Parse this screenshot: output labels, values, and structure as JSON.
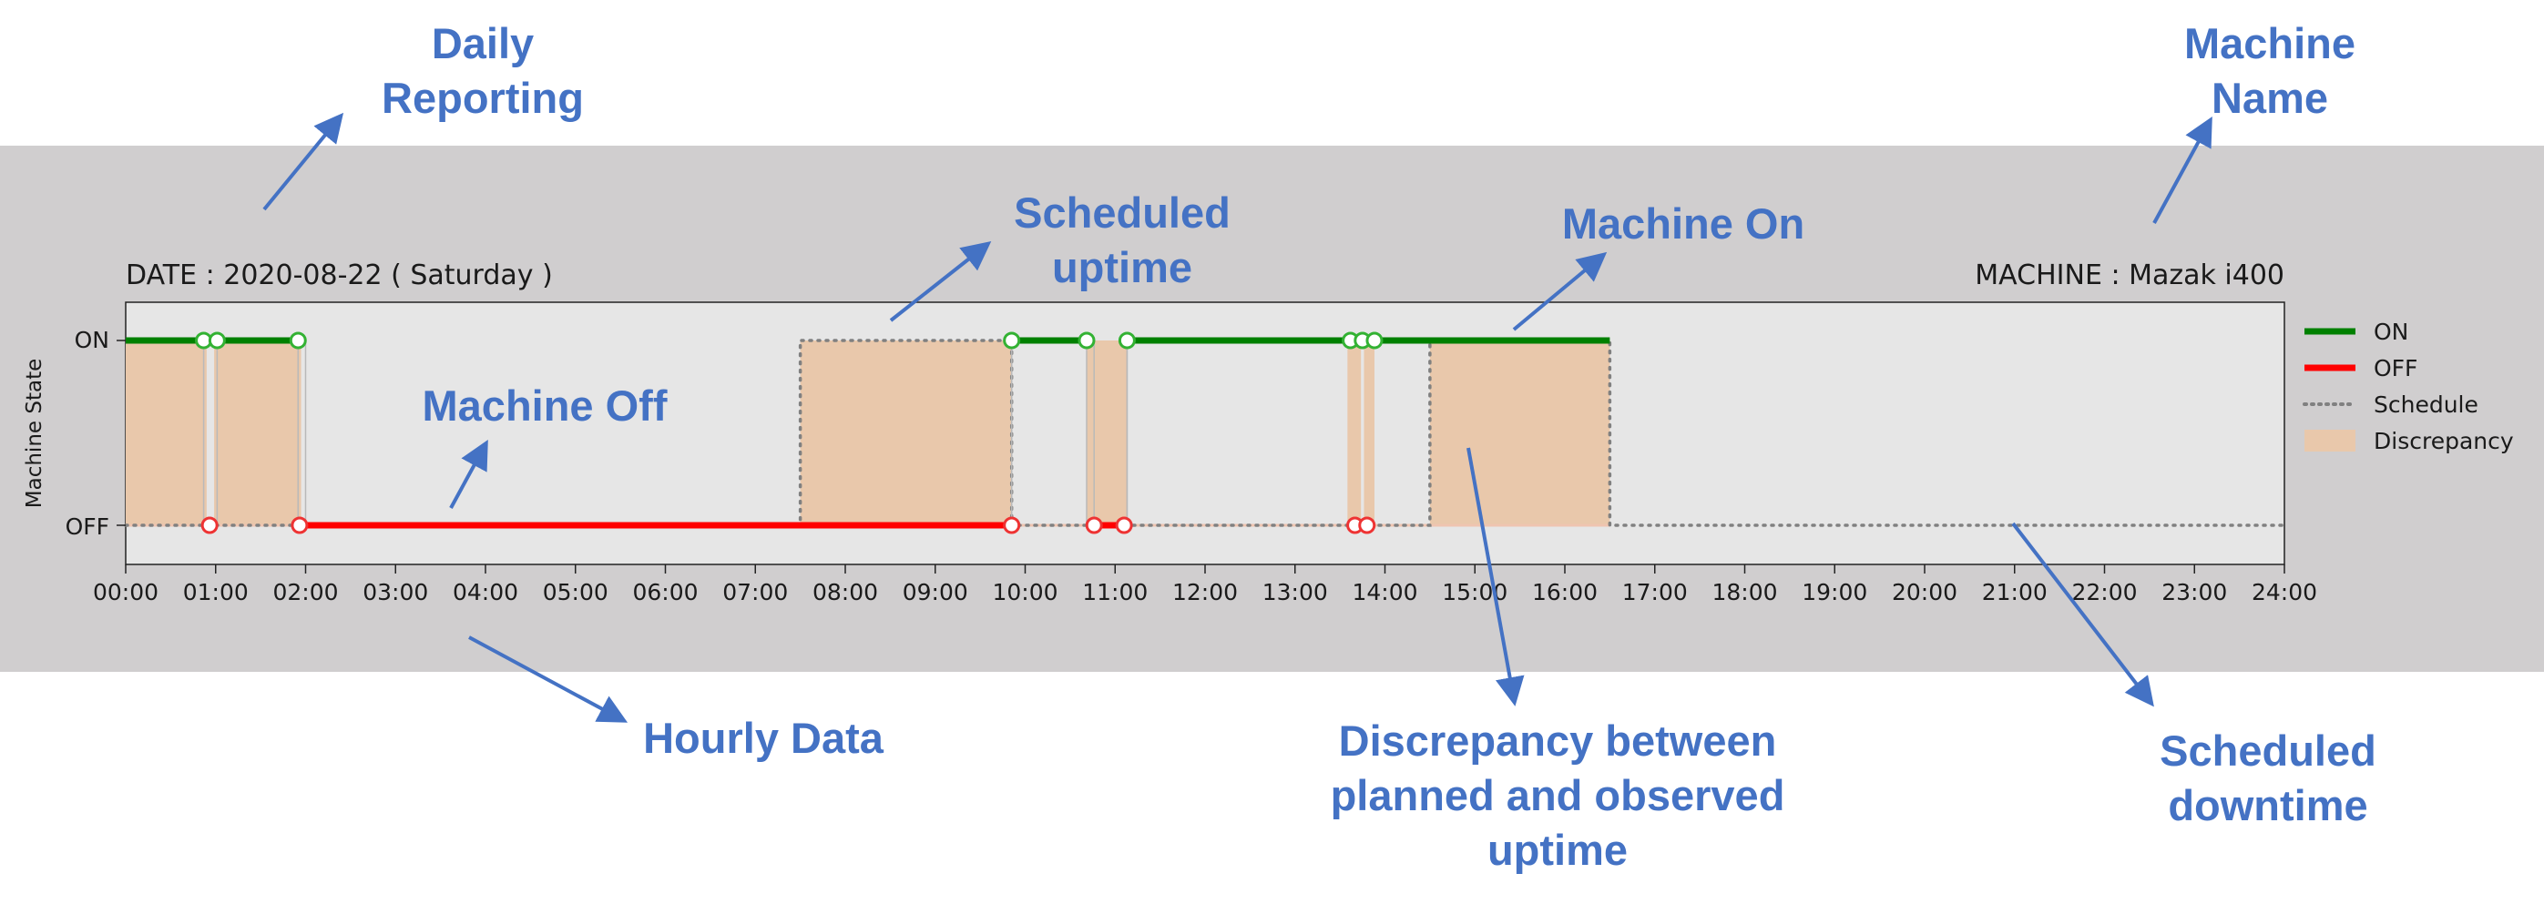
{
  "chart_data": {
    "type": "line",
    "date_label": "DATE : 2020-08-22 ( Saturday )",
    "machine_label": "MACHINE : Mazak i400",
    "ylabel": "Machine State",
    "y_categories": [
      "OFF",
      "ON"
    ],
    "xlim": [
      "00:00",
      "24:00"
    ],
    "x_ticks": [
      "00:00",
      "01:00",
      "02:00",
      "03:00",
      "04:00",
      "05:00",
      "06:00",
      "07:00",
      "08:00",
      "09:00",
      "10:00",
      "11:00",
      "12:00",
      "13:00",
      "14:00",
      "15:00",
      "16:00",
      "17:00",
      "18:00",
      "19:00",
      "20:00",
      "21:00",
      "22:00",
      "23:00",
      "24:00"
    ],
    "legend": {
      "placement": "right",
      "entries": [
        {
          "label": "ON",
          "color": "#008000",
          "style": "solid"
        },
        {
          "label": "OFF",
          "color": "#ff0000",
          "style": "solid"
        },
        {
          "label": "Schedule",
          "color": "#808080",
          "style": "dotted"
        },
        {
          "label": "Discrepancy",
          "color": "#e9c8ab",
          "style": "patch"
        }
      ]
    },
    "series": [
      {
        "name": "ON",
        "color": "#008000",
        "segments": [
          {
            "start": "00:00",
            "end": "00:52"
          },
          {
            "start": "01:01",
            "end": "01:55"
          },
          {
            "start": "09:51",
            "end": "10:41"
          },
          {
            "start": "11:08",
            "end": "16:30"
          }
        ]
      },
      {
        "name": "OFF",
        "color": "#ff0000",
        "segments": [
          {
            "start": "02:00",
            "end": "09:51"
          },
          {
            "start": "10:46",
            "end": "11:08"
          }
        ]
      },
      {
        "name": "Schedule",
        "color": "#808080",
        "steps": [
          {
            "time": "00:00",
            "state": "OFF"
          },
          {
            "time": "07:30",
            "state": "ON"
          },
          {
            "time": "09:51",
            "state": "OFF"
          },
          {
            "time": "14:30",
            "state": "ON"
          },
          {
            "time": "16:30",
            "state": "OFF"
          },
          {
            "time": "24:00",
            "state": "OFF"
          }
        ]
      }
    ],
    "on_markers": [
      "00:52",
      "01:01",
      "01:55",
      "09:51",
      "10:41",
      "11:08",
      "13:37",
      "13:45",
      "13:53"
    ],
    "off_markers": [
      "00:56",
      "01:56",
      "09:51",
      "10:46",
      "11:06",
      "13:40",
      "13:48"
    ],
    "discrepancy": [
      {
        "start": "00:00",
        "end": "00:54"
      },
      {
        "start": "00:59",
        "end": "01:57"
      },
      {
        "start": "07:30",
        "end": "09:51"
      },
      {
        "start": "10:41",
        "end": "11:08"
      },
      {
        "start": "13:35",
        "end": "13:44"
      },
      {
        "start": "13:46",
        "end": "13:53"
      },
      {
        "start": "14:30",
        "end": "16:30"
      }
    ],
    "colors": {
      "on": "#008000",
      "off": "#ff0000",
      "schedule": "#808080",
      "discrepancy": "#e9c8ab",
      "callout": "#4472c4",
      "figure_bg": "#d0cecf",
      "axes_bg": "#e6e6e6"
    }
  },
  "callouts": {
    "daily_reporting": "Daily\nReporting",
    "machine_name": "Machine\nName",
    "scheduled_uptime": "Scheduled\nuptime",
    "machine_on": "Machine On",
    "machine_off": "Machine Off",
    "hourly_data": "Hourly Data",
    "discrepancy": "Discrepancy between\nplanned and observed\nuptime",
    "scheduled_downtime": "Scheduled\ndowntime"
  }
}
